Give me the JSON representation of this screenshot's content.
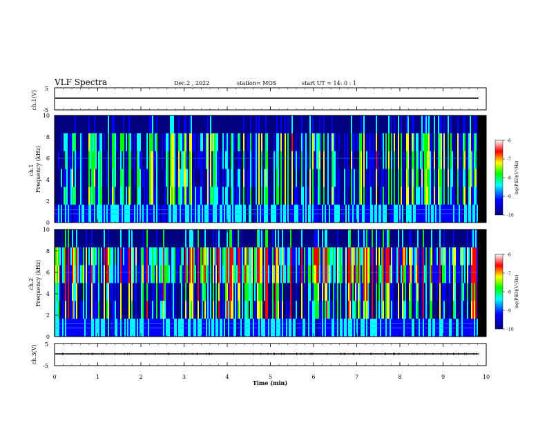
{
  "header": {
    "title": "VLF Spectra",
    "date": "Dec.2 , 2022",
    "station": "station= MOS",
    "start_ut": "start  UT =   14: 0  : 1"
  },
  "chart_data": {
    "type": "heatmap",
    "x_axis": {
      "label": "Time  (min)",
      "range": [
        0,
        10
      ],
      "ticks": [
        "0",
        "1",
        "2",
        "3",
        "4",
        "5",
        "6",
        "7",
        "8",
        "9",
        "10"
      ]
    },
    "panels": [
      {
        "id": "ch1-waveform",
        "ylabel": "ch.1(V)",
        "yrange": [
          -5,
          5
        ],
        "ticks": [
          "5",
          "-5"
        ]
      },
      {
        "id": "ch1-spectrogram",
        "ylabel": "ch.1",
        "ylabel2": "Frequency (kHz)",
        "yrange": [
          0,
          10
        ],
        "ticks": [
          "0",
          "2",
          "4",
          "6",
          "8",
          "10"
        ],
        "data_end_min": 9.8
      },
      {
        "id": "ch2-spectrogram",
        "ylabel": "ch.2",
        "ylabel2": "Frequency (kHz)",
        "yrange": [
          0,
          10
        ],
        "ticks": [
          "0",
          "2",
          "4",
          "6",
          "8",
          "10"
        ],
        "data_end_min": 9.8
      },
      {
        "id": "ch3-waveform",
        "ylabel": "ch.3(V)",
        "yrange": [
          -5,
          5
        ],
        "ticks": [
          "5",
          "-5"
        ]
      }
    ],
    "colorbar": {
      "label": "log(PSD)(V²/Hz)",
      "range": [
        -10,
        -6
      ],
      "ticks": [
        "-6",
        "-7",
        "-8",
        "-9",
        "-10"
      ],
      "colors": [
        "#000080",
        "#0000ff",
        "#00ffff",
        "#00ff00",
        "#ffff00",
        "#ff0000",
        "#ffffff"
      ]
    }
  }
}
